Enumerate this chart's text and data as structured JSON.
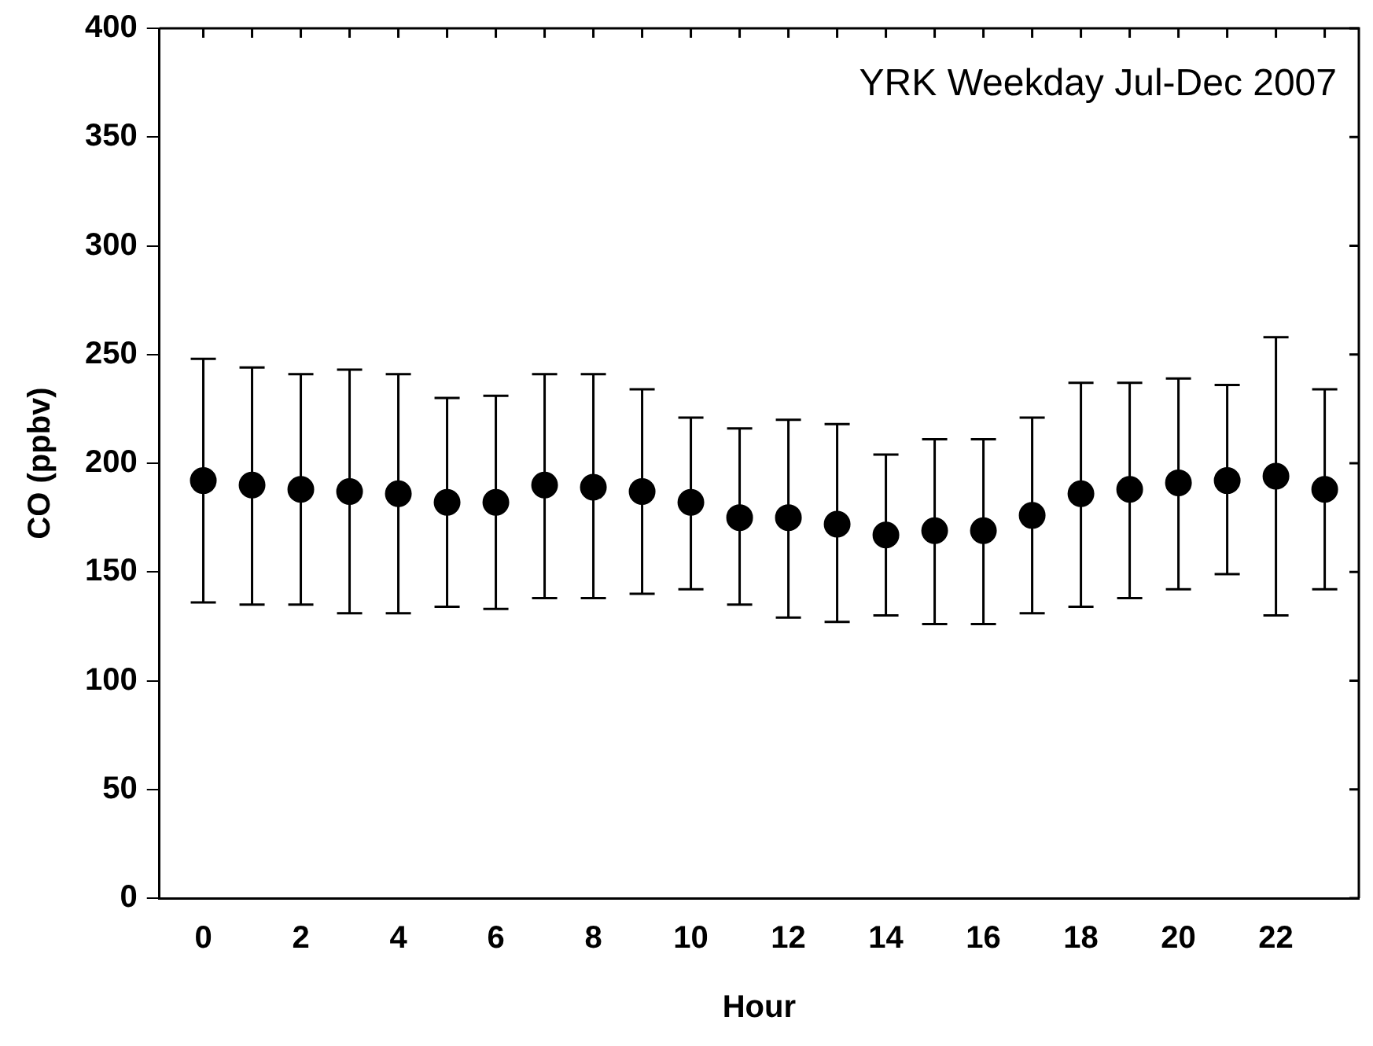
{
  "chart_data": {
    "type": "scatter",
    "xlabel": "Hour",
    "ylabel": "CO (ppbv)",
    "annotations": [
      "YRK Weekday Jul-Dec 2007"
    ],
    "x": [
      0,
      1,
      2,
      3,
      4,
      5,
      6,
      7,
      8,
      9,
      10,
      11,
      12,
      13,
      14,
      15,
      16,
      17,
      18,
      19,
      20,
      21,
      22,
      23
    ],
    "series": [
      {
        "color": "#000000",
        "values": [
          192,
          190,
          188,
          187,
          186,
          182,
          182,
          190,
          189,
          187,
          182,
          175,
          175,
          172,
          167,
          169,
          169,
          176,
          186,
          188,
          191,
          192,
          194,
          188
        ],
        "errors": [
          [
            136,
            248
          ],
          [
            135,
            244
          ],
          [
            135,
            241
          ],
          [
            131,
            243
          ],
          [
            131,
            241
          ],
          [
            134,
            230
          ],
          [
            133,
            231
          ],
          [
            138,
            241
          ],
          [
            138,
            241
          ],
          [
            140,
            234
          ],
          [
            142,
            221
          ],
          [
            135,
            216
          ],
          [
            129,
            220
          ],
          [
            127,
            218
          ],
          [
            130,
            204
          ],
          [
            126,
            211
          ],
          [
            126,
            211
          ],
          [
            131,
            221
          ],
          [
            134,
            237
          ],
          [
            138,
            237
          ],
          [
            142,
            239
          ],
          [
            149,
            236
          ],
          [
            130,
            258
          ],
          [
            142,
            234
          ]
        ]
      }
    ],
    "xlim": [
      -0.9,
      23.7
    ],
    "ylim": [
      0,
      400
    ],
    "xticks": [
      0,
      {
        "value": 1,
        "label": null
      },
      2,
      {
        "value": 3,
        "label": null
      },
      4,
      {
        "value": 5,
        "label": null
      },
      6,
      {
        "value": 7,
        "label": null
      },
      8,
      {
        "value": 9,
        "label": null
      },
      10,
      {
        "value": 11,
        "label": null
      },
      12,
      {
        "value": 13,
        "label": null
      },
      14,
      {
        "value": 15,
        "label": null
      },
      16,
      {
        "value": 17,
        "label": null
      },
      18,
      {
        "value": 19,
        "label": null
      },
      20,
      {
        "value": 21,
        "label": null
      },
      22,
      {
        "value": 23,
        "label": null
      }
    ],
    "yticks": [
      0,
      50,
      100,
      150,
      200,
      250,
      300,
      350,
      400
    ],
    "grid": false,
    "legend": false,
    "marker": "circle"
  }
}
